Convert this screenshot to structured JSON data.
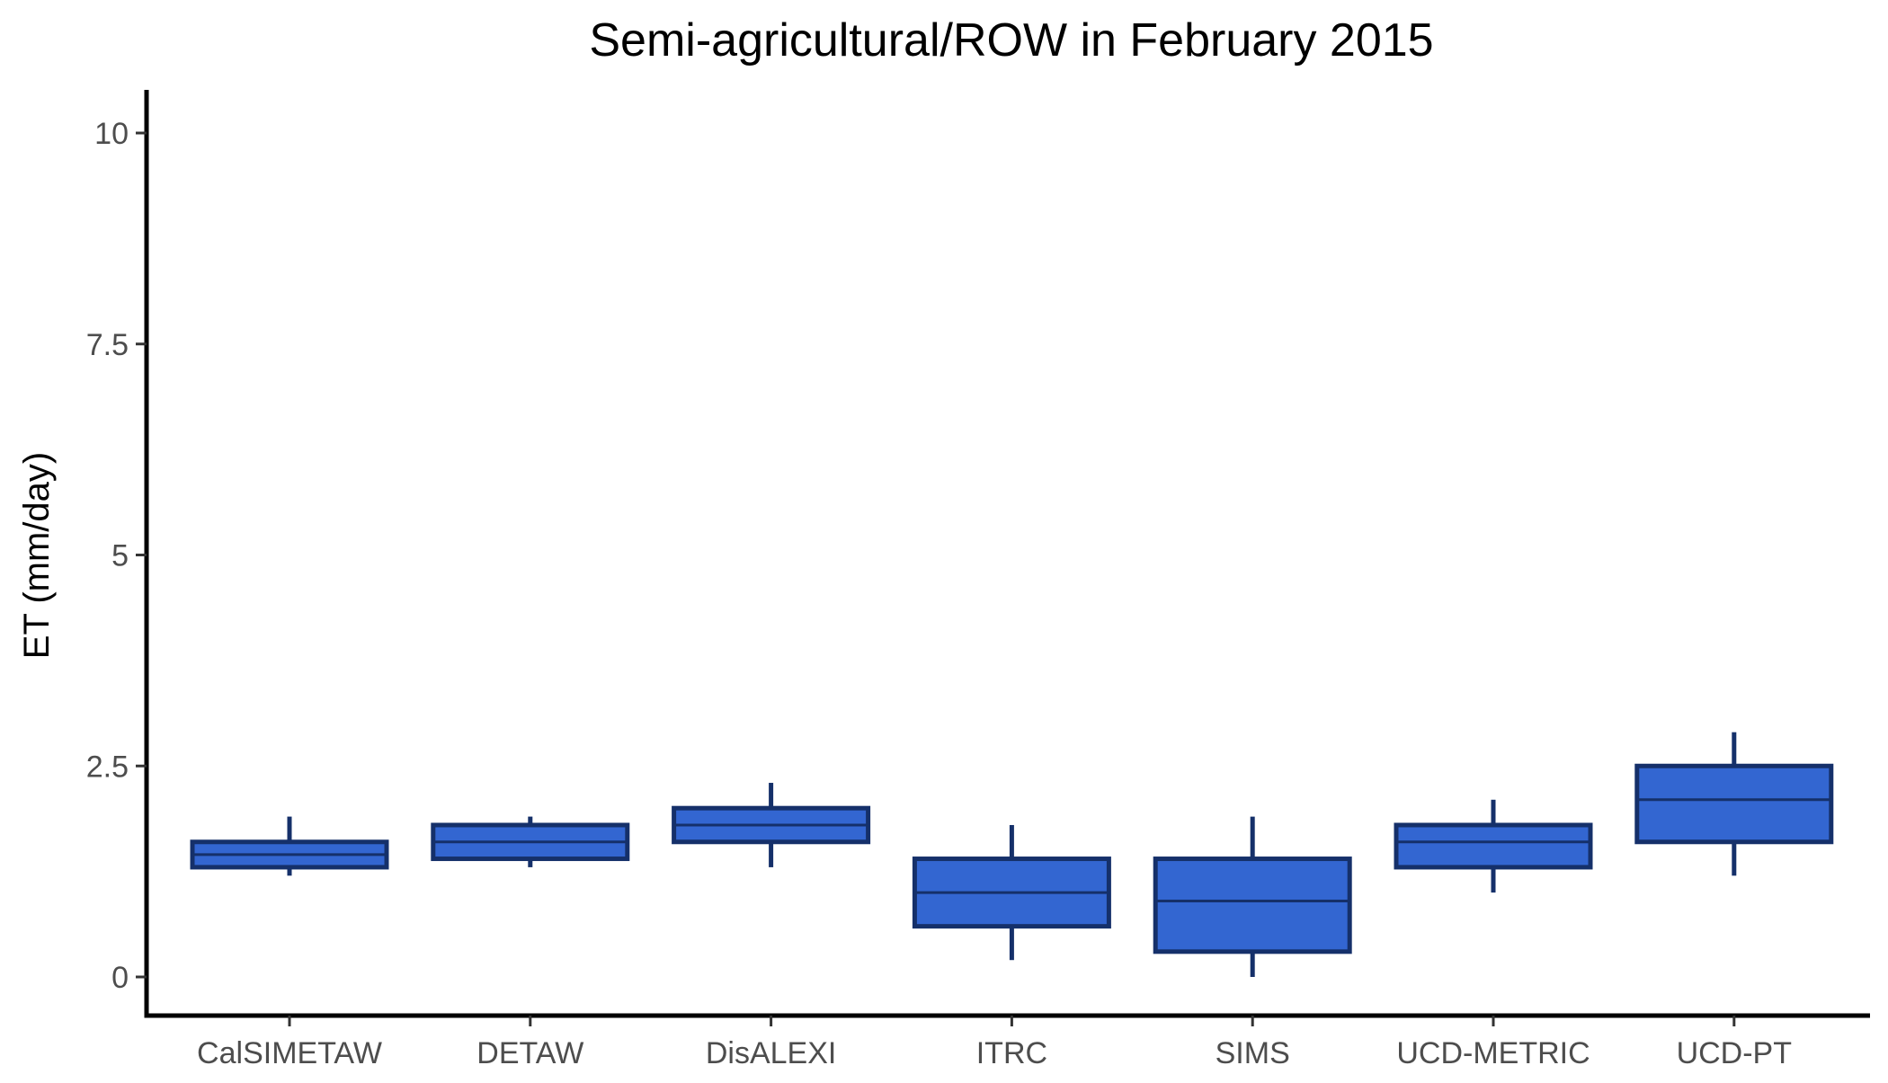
{
  "chart_data": {
    "type": "box",
    "title": "Semi-agricultural/ROW in February 2015",
    "xlabel": "",
    "ylabel": "ET (mm/day)",
    "ylim": [
      -0.5,
      10.5
    ],
    "yticks": [
      0,
      2.5,
      5,
      7.5,
      10
    ],
    "ytick_labels": [
      "0",
      "2.5",
      "5",
      "7.5",
      "10"
    ],
    "grid": false,
    "legend": "none",
    "colors": {
      "fill": "#3366d1",
      "stroke": "#15306a",
      "axis": "#000000"
    },
    "categories": [
      "CalSIMETAW",
      "DETAW",
      "DisALEXI",
      "ITRC",
      "SIMS",
      "UCD-METRIC",
      "UCD-PT"
    ],
    "boxes": [
      {
        "category": "CalSIMETAW",
        "whisker_low": 1.2,
        "q1": 1.3,
        "median": 1.45,
        "q3": 1.6,
        "whisker_high": 1.9
      },
      {
        "category": "DETAW",
        "whisker_low": 1.3,
        "q1": 1.4,
        "median": 1.6,
        "q3": 1.8,
        "whisker_high": 1.9
      },
      {
        "category": "DisALEXI",
        "whisker_low": 1.3,
        "q1": 1.6,
        "median": 1.8,
        "q3": 2.0,
        "whisker_high": 2.3
      },
      {
        "category": "ITRC",
        "whisker_low": 0.2,
        "q1": 0.6,
        "median": 1.0,
        "q3": 1.4,
        "whisker_high": 1.8
      },
      {
        "category": "SIMS",
        "whisker_low": 0.0,
        "q1": 0.3,
        "median": 0.9,
        "q3": 1.4,
        "whisker_high": 1.9
      },
      {
        "category": "UCD-METRIC",
        "whisker_low": 1.0,
        "q1": 1.3,
        "median": 1.6,
        "q3": 1.8,
        "whisker_high": 2.1
      },
      {
        "category": "UCD-PT",
        "whisker_low": 1.2,
        "q1": 1.6,
        "median": 2.1,
        "q3": 2.5,
        "whisker_high": 2.9
      }
    ]
  }
}
